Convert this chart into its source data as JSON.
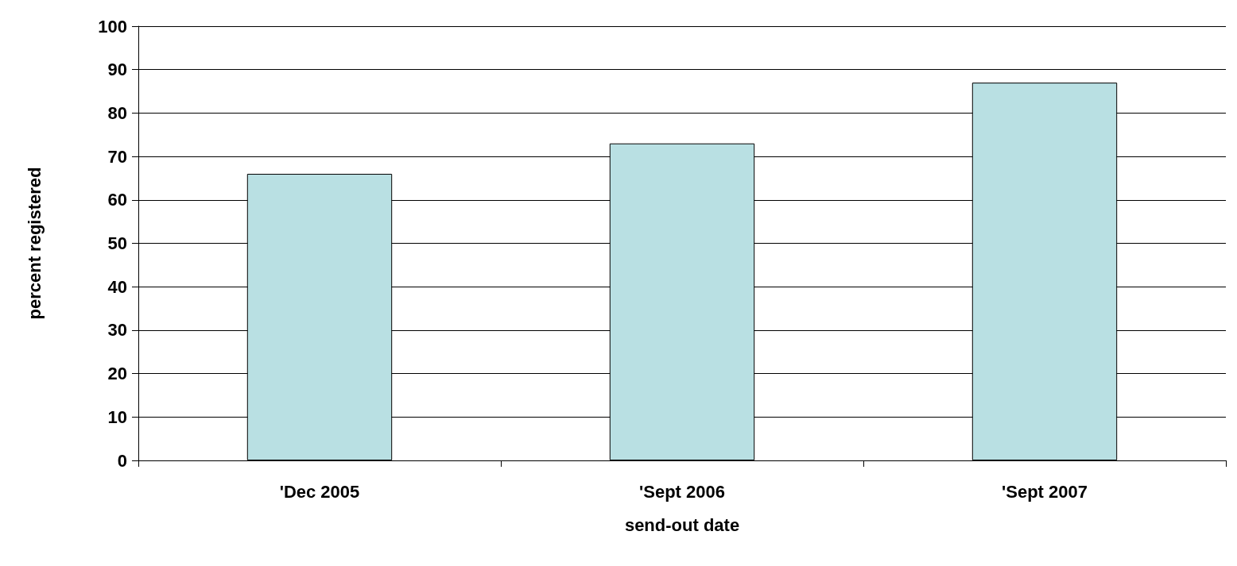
{
  "chart_data": {
    "type": "bar",
    "xlabel": "send-out date",
    "ylabel": "percent registered",
    "categories": [
      "'Dec 2005",
      "'Sept 2006",
      "'Sept 2007"
    ],
    "values": [
      66,
      73,
      87
    ],
    "color": "#b9e0e3",
    "ylim": [
      0,
      100
    ],
    "yticks": [
      0,
      10,
      20,
      30,
      40,
      50,
      60,
      70,
      80,
      90,
      100
    ],
    "grid": "y"
  }
}
